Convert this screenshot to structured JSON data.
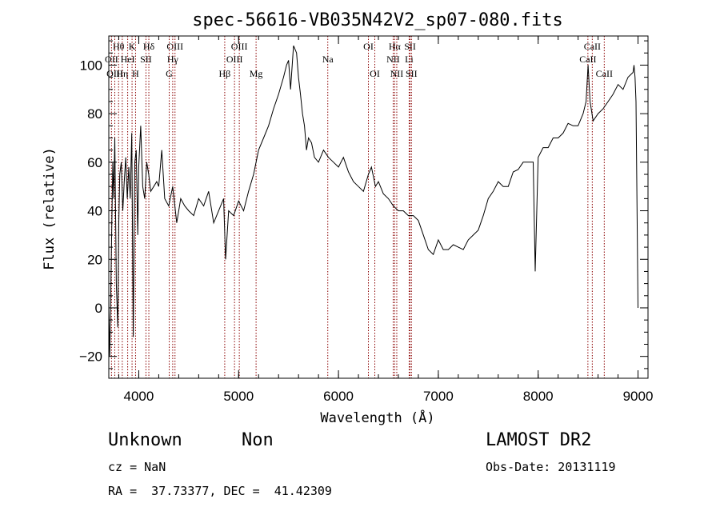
{
  "chart_data": {
    "type": "line",
    "title": "spec-56616-VB035N42V2_sp07-080.fits",
    "xlabel": "Wavelength (Å)",
    "ylabel": "Flux (relative)",
    "xlim": [
      3700,
      9100
    ],
    "ylim": [
      -29,
      112
    ],
    "xticks": [
      4000,
      5000,
      6000,
      7000,
      8000,
      9000
    ],
    "yticks": [
      -20,
      0,
      20,
      40,
      60,
      80,
      100
    ],
    "grid": false,
    "line_color": "#000000",
    "marker_color": "#8b0000",
    "series": [
      {
        "x": [
          3700,
          3710,
          3725,
          3740,
          3750,
          3760,
          3775,
          3790,
          3800,
          3810,
          3825,
          3840,
          3855,
          3870,
          3885,
          3900,
          3915,
          3930,
          3945,
          3960,
          3975,
          3990,
          4000,
          4020,
          4040,
          4060,
          4080,
          4100,
          4120,
          4150,
          4180,
          4200,
          4230,
          4260,
          4300,
          4340,
          4380,
          4420,
          4460,
          4500,
          4550,
          4600,
          4650,
          4700,
          4750,
          4800,
          4850,
          4870,
          4900,
          4950,
          5000,
          5050,
          5100,
          5150,
          5200,
          5250,
          5300,
          5350,
          5400,
          5450,
          5480,
          5500,
          5520,
          5550,
          5580,
          5600,
          5620,
          5640,
          5660,
          5680,
          5700,
          5730,
          5760,
          5800,
          5850,
          5900,
          5950,
          6000,
          6050,
          6100,
          6150,
          6200,
          6250,
          6300,
          6330,
          6370,
          6400,
          6450,
          6500,
          6550,
          6600,
          6650,
          6700,
          6750,
          6800,
          6850,
          6900,
          6950,
          7000,
          7050,
          7100,
          7150,
          7200,
          7250,
          7300,
          7350,
          7400,
          7450,
          7500,
          7550,
          7600,
          7650,
          7700,
          7750,
          7800,
          7850,
          7900,
          7950,
          7970,
          8000,
          8050,
          8100,
          8150,
          8200,
          8250,
          8300,
          8350,
          8400,
          8450,
          8480,
          8500,
          8520,
          8550,
          8600,
          8650,
          8700,
          8750,
          8800,
          8850,
          8900,
          8950,
          8960,
          8970,
          8980,
          9000
        ],
        "y": [
          0,
          -20,
          20,
          60,
          45,
          70,
          10,
          -8,
          35,
          55,
          60,
          40,
          52,
          62,
          45,
          58,
          45,
          72,
          -12,
          60,
          65,
          30,
          58,
          75,
          50,
          45,
          60,
          55,
          48,
          50,
          52,
          50,
          65,
          45,
          42,
          50,
          35,
          45,
          42,
          40,
          38,
          45,
          42,
          48,
          35,
          40,
          45,
          20,
          40,
          38,
          44,
          40,
          48,
          55,
          65,
          70,
          75,
          82,
          88,
          95,
          100,
          102,
          90,
          108,
          105,
          95,
          88,
          80,
          75,
          65,
          70,
          68,
          62,
          60,
          65,
          62,
          60,
          58,
          62,
          56,
          52,
          50,
          48,
          55,
          58,
          50,
          52,
          47,
          45,
          42,
          40,
          40,
          38,
          38,
          36,
          30,
          24,
          22,
          28,
          24,
          24,
          26,
          25,
          24,
          28,
          30,
          32,
          38,
          45,
          48,
          52,
          50,
          50,
          56,
          57,
          60,
          60,
          60,
          15,
          62,
          66,
          66,
          70,
          70,
          72,
          76,
          75,
          75,
          80,
          85,
          100,
          85,
          77,
          80,
          82,
          85,
          88,
          92,
          90,
          95,
          97,
          100,
          95,
          85,
          0
        ]
      }
    ],
    "line_markers": [
      {
        "label": "Hθ",
        "x": 3798,
        "row": 1
      },
      {
        "label": "OII",
        "x": 3727,
        "row": 2
      },
      {
        "label": "OIII",
        "x": 3760,
        "row": 3
      },
      {
        "label": "Hη",
        "x": 3835,
        "row": 3
      },
      {
        "label": "K",
        "x": 3933,
        "row": 1
      },
      {
        "label": "HeI",
        "x": 3889,
        "row": 2
      },
      {
        "label": "H",
        "x": 3968,
        "row": 3
      },
      {
        "label": "SII",
        "x": 4072,
        "row": 2
      },
      {
        "label": "Hδ",
        "x": 4101,
        "row": 1
      },
      {
        "label": "OIII",
        "x": 4363,
        "row": 1
      },
      {
        "label": "Hγ",
        "x": 4340,
        "row": 2
      },
      {
        "label": "G",
        "x": 4305,
        "row": 3
      },
      {
        "label": "Hβ",
        "x": 4861,
        "row": 3
      },
      {
        "label": "OIII",
        "x": 5007,
        "row": 1
      },
      {
        "label": "OIII",
        "x": 4959,
        "row": 2
      },
      {
        "label": "Mg",
        "x": 5175,
        "row": 3
      },
      {
        "label": "Na",
        "x": 5893,
        "row": 2
      },
      {
        "label": "OI",
        "x": 6300,
        "row": 1
      },
      {
        "label": "OI",
        "x": 6364,
        "row": 3
      },
      {
        "label": "Hα",
        "x": 6563,
        "row": 1
      },
      {
        "label": "NII",
        "x": 6548,
        "row": 2
      },
      {
        "label": "NII",
        "x": 6584,
        "row": 3
      },
      {
        "label": "SII",
        "x": 6717,
        "row": 1
      },
      {
        "label": "Li",
        "x": 6708,
        "row": 2
      },
      {
        "label": "SII",
        "x": 6731,
        "row": 3
      },
      {
        "label": "CaII",
        "x": 8542,
        "row": 1
      },
      {
        "label": "CaII",
        "x": 8498,
        "row": 2
      },
      {
        "label": "CaII",
        "x": 8662,
        "row": 3
      }
    ]
  },
  "info": {
    "class": "Unknown",
    "subclass": "Non",
    "survey": "LAMOST DR2",
    "cz": "cz = NaN",
    "obs_date": "Obs-Date: 20131119",
    "coords": "RA =  37.73377, DEC =  41.42309"
  }
}
